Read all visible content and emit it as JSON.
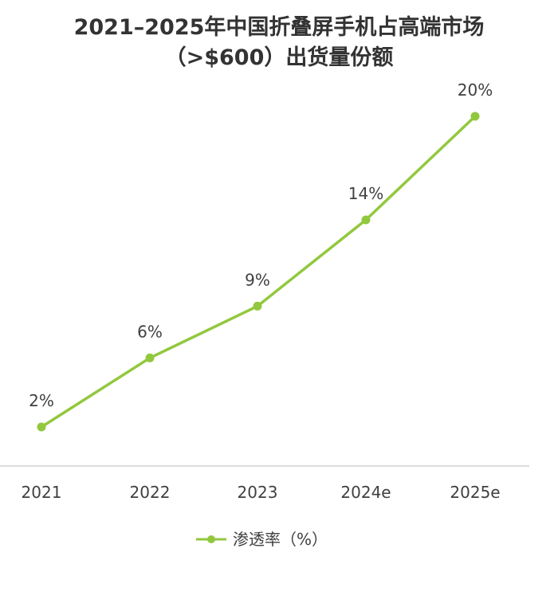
{
  "chart_data": {
    "type": "line",
    "title_line1": "2021–2025年中国折叠屏手机占高端市场",
    "title_line2": "（>$600）出货量份额",
    "categories": [
      "2021",
      "2022",
      "2023",
      "2024e",
      "2025e"
    ],
    "series": [
      {
        "name": "渗透率（%）",
        "values": [
          2,
          6,
          9,
          14,
          20
        ],
        "labels": [
          "2%",
          "6%",
          "9%",
          "14%",
          "20%"
        ],
        "color": "#92c83e"
      }
    ],
    "ylim": [
      0,
      22
    ],
    "grid": false,
    "legend_position": "bottom-center",
    "axis_color": "#d0d0d0",
    "text_color": "#404040"
  }
}
